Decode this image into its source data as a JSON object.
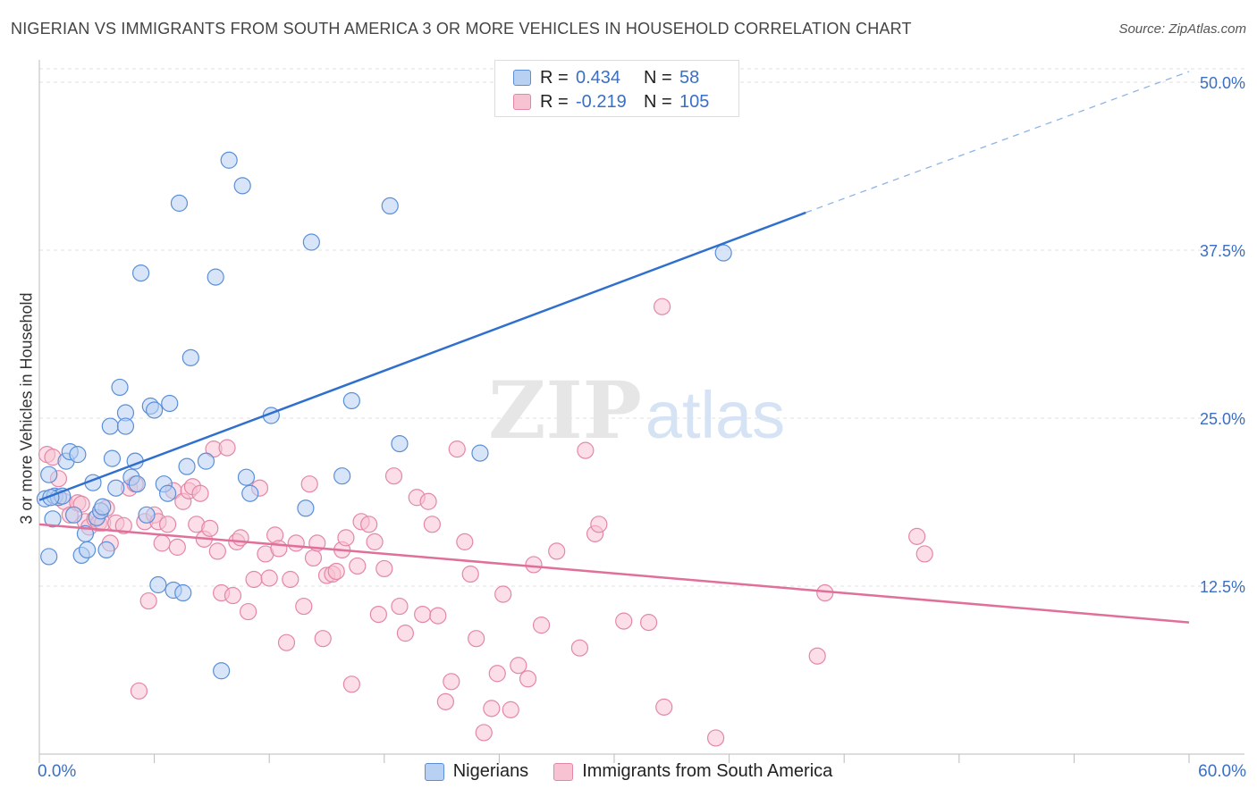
{
  "title": "NIGERIAN VS IMMIGRANTS FROM SOUTH AMERICA 3 OR MORE VEHICLES IN HOUSEHOLD CORRELATION CHART",
  "source": "Source: ZipAtlas.com",
  "watermark": {
    "part1": "ZIP",
    "part2": "atlas"
  },
  "legend": {
    "rows": [
      {
        "r_label": "R =",
        "r_value": "0.434",
        "n_label": "N =",
        "n_value": "58"
      },
      {
        "r_label": "R =",
        "r_value": "-0.219",
        "n_label": "N =",
        "n_value": "105"
      }
    ]
  },
  "x_axis": {
    "min_label": "0.0%",
    "max_label": "60.0%"
  },
  "chart_data": {
    "type": "scatter",
    "xlabel": "",
    "ylabel": "3 or more Vehicles in Household",
    "xlim": [
      0,
      60
    ],
    "ylim": [
      0,
      51
    ],
    "y_ticks": [
      {
        "value": 12.5,
        "label": "12.5%"
      },
      {
        "value": 25.0,
        "label": "25.0%"
      },
      {
        "value": 37.5,
        "label": "37.5%"
      },
      {
        "value": 50.0,
        "label": "50.0%"
      }
    ],
    "grid": "horizontal dashed",
    "legend_position": "top-center and bottom",
    "series": [
      {
        "name": "Nigerians",
        "color": "#5a8fd8",
        "fill": "#b8d0f2",
        "trend": {
          "x0": 0,
          "y0": 18.9,
          "x1": 40,
          "y1": 40.3,
          "dash_to_x": 60,
          "dash_to_y": 50.8
        },
        "points": [
          [
            0.3,
            19.0
          ],
          [
            0.5,
            20.8
          ],
          [
            0.5,
            14.7
          ],
          [
            0.7,
            17.5
          ],
          [
            0.8,
            19.2
          ],
          [
            1.0,
            19.1
          ],
          [
            1.2,
            19.2
          ],
          [
            1.4,
            21.8
          ],
          [
            1.6,
            22.5
          ],
          [
            1.8,
            17.8
          ],
          [
            2.0,
            22.3
          ],
          [
            2.2,
            14.8
          ],
          [
            2.4,
            16.4
          ],
          [
            2.5,
            15.2
          ],
          [
            2.8,
            20.2
          ],
          [
            3.0,
            17.6
          ],
          [
            3.2,
            18.1
          ],
          [
            3.3,
            18.4
          ],
          [
            3.5,
            15.2
          ],
          [
            3.7,
            24.4
          ],
          [
            3.8,
            22.0
          ],
          [
            4.0,
            19.8
          ],
          [
            4.2,
            27.3
          ],
          [
            4.5,
            25.4
          ],
          [
            4.5,
            24.4
          ],
          [
            4.8,
            20.6
          ],
          [
            5.0,
            21.8
          ],
          [
            5.1,
            20.1
          ],
          [
            5.3,
            35.8
          ],
          [
            5.6,
            17.8
          ],
          [
            5.8,
            25.9
          ],
          [
            6.0,
            25.6
          ],
          [
            6.2,
            12.6
          ],
          [
            6.5,
            20.1
          ],
          [
            6.7,
            19.4
          ],
          [
            6.8,
            26.1
          ],
          [
            7.0,
            12.2
          ],
          [
            7.3,
            41.0
          ],
          [
            7.5,
            12.0
          ],
          [
            7.7,
            21.4
          ],
          [
            7.9,
            29.5
          ],
          [
            8.7,
            21.8
          ],
          [
            9.2,
            35.5
          ],
          [
            9.5,
            6.2
          ],
          [
            9.9,
            44.2
          ],
          [
            10.6,
            42.3
          ],
          [
            10.8,
            20.6
          ],
          [
            11.0,
            19.4
          ],
          [
            12.1,
            25.2
          ],
          [
            13.9,
            18.3
          ],
          [
            14.2,
            38.1
          ],
          [
            15.8,
            20.7
          ],
          [
            16.3,
            26.3
          ],
          [
            18.3,
            40.8
          ],
          [
            18.8,
            23.1
          ],
          [
            23.0,
            22.4
          ],
          [
            35.7,
            37.3
          ],
          [
            0.6,
            19.1
          ]
        ]
      },
      {
        "name": "Immigrants from South America",
        "color": "#e487a6",
        "fill": "#f7c3d3",
        "trend": {
          "x0": 0,
          "y0": 17.1,
          "x1": 60,
          "y1": 9.8
        },
        "points": [
          [
            0.4,
            22.3
          ],
          [
            0.7,
            22.1
          ],
          [
            1.0,
            20.5
          ],
          [
            1.3,
            18.8
          ],
          [
            1.6,
            17.8
          ],
          [
            2.0,
            18.7
          ],
          [
            2.2,
            18.6
          ],
          [
            2.4,
            17.3
          ],
          [
            2.6,
            16.9
          ],
          [
            2.9,
            17.5
          ],
          [
            3.1,
            17.2
          ],
          [
            3.3,
            17.2
          ],
          [
            3.5,
            18.3
          ],
          [
            3.7,
            15.7
          ],
          [
            4.0,
            17.2
          ],
          [
            4.4,
            17.0
          ],
          [
            4.7,
            19.8
          ],
          [
            5.0,
            20.1
          ],
          [
            5.2,
            4.7
          ],
          [
            5.5,
            17.3
          ],
          [
            5.7,
            11.4
          ],
          [
            6.0,
            17.8
          ],
          [
            6.2,
            17.3
          ],
          [
            6.4,
            15.7
          ],
          [
            6.7,
            17.1
          ],
          [
            7.0,
            19.6
          ],
          [
            7.2,
            15.4
          ],
          [
            7.5,
            18.8
          ],
          [
            7.8,
            19.6
          ],
          [
            8.0,
            19.9
          ],
          [
            8.2,
            17.1
          ],
          [
            8.4,
            19.4
          ],
          [
            8.6,
            16.0
          ],
          [
            8.9,
            16.8
          ],
          [
            9.1,
            22.7
          ],
          [
            9.3,
            15.1
          ],
          [
            9.5,
            12.0
          ],
          [
            9.8,
            22.8
          ],
          [
            10.1,
            11.8
          ],
          [
            10.3,
            15.8
          ],
          [
            10.5,
            16.1
          ],
          [
            10.9,
            10.6
          ],
          [
            11.2,
            13.0
          ],
          [
            11.5,
            19.8
          ],
          [
            11.8,
            14.9
          ],
          [
            12.0,
            13.1
          ],
          [
            12.3,
            16.3
          ],
          [
            12.5,
            15.3
          ],
          [
            12.9,
            8.3
          ],
          [
            13.1,
            13.0
          ],
          [
            13.4,
            15.7
          ],
          [
            13.8,
            11.0
          ],
          [
            14.1,
            20.1
          ],
          [
            14.3,
            14.6
          ],
          [
            14.5,
            15.7
          ],
          [
            14.8,
            8.6
          ],
          [
            15.0,
            13.3
          ],
          [
            15.3,
            13.4
          ],
          [
            15.5,
            13.6
          ],
          [
            15.8,
            15.2
          ],
          [
            16.0,
            16.1
          ],
          [
            16.3,
            5.2
          ],
          [
            16.6,
            14.0
          ],
          [
            16.8,
            17.3
          ],
          [
            17.2,
            17.1
          ],
          [
            17.5,
            15.8
          ],
          [
            17.7,
            10.4
          ],
          [
            18.0,
            13.8
          ],
          [
            18.5,
            20.7
          ],
          [
            18.8,
            11.0
          ],
          [
            19.1,
            9.0
          ],
          [
            19.7,
            19.1
          ],
          [
            20.0,
            10.4
          ],
          [
            20.3,
            18.8
          ],
          [
            20.5,
            17.1
          ],
          [
            20.8,
            10.3
          ],
          [
            21.2,
            3.9
          ],
          [
            21.5,
            5.4
          ],
          [
            21.8,
            22.7
          ],
          [
            22.2,
            15.8
          ],
          [
            22.5,
            13.4
          ],
          [
            22.8,
            8.6
          ],
          [
            23.2,
            1.6
          ],
          [
            23.6,
            3.4
          ],
          [
            23.9,
            6.0
          ],
          [
            24.2,
            11.9
          ],
          [
            24.6,
            3.3
          ],
          [
            25.0,
            6.6
          ],
          [
            25.5,
            5.6
          ],
          [
            25.8,
            14.1
          ],
          [
            26.2,
            9.6
          ],
          [
            27.0,
            15.1
          ],
          [
            28.2,
            7.9
          ],
          [
            29.0,
            16.4
          ],
          [
            29.2,
            17.1
          ],
          [
            30.5,
            9.9
          ],
          [
            31.8,
            9.8
          ],
          [
            32.5,
            33.3
          ],
          [
            32.6,
            3.5
          ],
          [
            35.3,
            1.2
          ],
          [
            40.6,
            7.3
          ],
          [
            45.8,
            16.2
          ],
          [
            46.2,
            14.9
          ],
          [
            41.0,
            12.0
          ],
          [
            28.5,
            22.6
          ]
        ]
      }
    ]
  }
}
